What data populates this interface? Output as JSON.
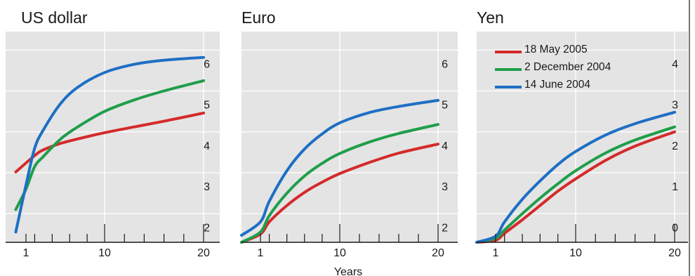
{
  "chart_data": [
    {
      "type": "line",
      "title": "US dollar",
      "xlabel": "",
      "ylabel": "",
      "xlim": [
        0,
        21
      ],
      "ylim": [
        1.8,
        6.95
      ],
      "x_ticks": [
        1,
        10,
        20
      ],
      "y_ticks": [
        2,
        3,
        4,
        5,
        6
      ],
      "series": [
        {
          "name": "18 May 2005",
          "color": "#d42a2a",
          "x": [
            0.5,
            2,
            3,
            5,
            7,
            10,
            13,
            16,
            20
          ],
          "y": [
            3.52,
            3.92,
            4.06,
            4.22,
            4.33,
            4.48,
            4.62,
            4.76,
            4.96
          ]
        },
        {
          "name": "2 December 2004",
          "color": "#1f9e4a",
          "x": [
            0.5,
            1,
            2,
            3,
            5,
            7,
            10,
            13,
            16,
            20
          ],
          "y": [
            2.6,
            3.1,
            3.65,
            3.9,
            4.33,
            4.63,
            5.0,
            5.28,
            5.5,
            5.75
          ]
        },
        {
          "name": "14 June 2004",
          "color": "#1e6fc4",
          "x": [
            0.5,
            1,
            2,
            3,
            5,
            7,
            10,
            13,
            16,
            20
          ],
          "y": [
            2.05,
            3.2,
            4.1,
            4.55,
            5.2,
            5.6,
            5.95,
            6.15,
            6.25,
            6.32
          ]
        }
      ]
    },
    {
      "type": "line",
      "title": "Euro",
      "xlabel": "Years",
      "ylabel": "",
      "xlim": [
        0,
        21
      ],
      "ylim": [
        1.8,
        6.95
      ],
      "x_ticks": [
        1,
        10,
        20
      ],
      "y_ticks": [
        2,
        3,
        4,
        5,
        6
      ],
      "series": [
        {
          "name": "18 May 2005",
          "color": "#d42a2a",
          "x": [
            0,
            1,
            2,
            4,
            6,
            8,
            10,
            13,
            16,
            20
          ],
          "y": [
            1.8,
            2.0,
            2.3,
            2.7,
            3.02,
            3.27,
            3.48,
            3.75,
            3.98,
            4.2
          ]
        },
        {
          "name": "2 December 2004",
          "color": "#1f9e4a",
          "x": [
            0,
            1,
            2,
            4,
            6,
            8,
            10,
            13,
            16,
            20
          ],
          "y": [
            1.8,
            2.05,
            2.45,
            3.0,
            3.42,
            3.73,
            3.97,
            4.25,
            4.46,
            4.68
          ]
        },
        {
          "name": "14 June 2004",
          "color": "#1e6fc4",
          "x": [
            0,
            1,
            2,
            4,
            6,
            8,
            10,
            13,
            16,
            20
          ],
          "y": [
            1.97,
            2.3,
            2.8,
            3.55,
            4.08,
            4.45,
            4.72,
            4.97,
            5.12,
            5.27
          ]
        }
      ]
    },
    {
      "type": "line",
      "title": "Yen",
      "xlabel": "",
      "ylabel": "",
      "xlim": [
        0,
        21
      ],
      "ylim": [
        -0.2,
        4.95
      ],
      "x_ticks": [
        1,
        10,
        20
      ],
      "y_ticks": [
        0,
        1,
        2,
        3,
        4
      ],
      "series": [
        {
          "name": "18 May 2005",
          "color": "#d42a2a",
          "x": [
            0,
            1,
            2,
            4,
            6,
            8,
            10,
            13,
            16,
            20
          ],
          "y": [
            -0.2,
            -0.15,
            0.02,
            0.35,
            0.7,
            1.05,
            1.35,
            1.8,
            2.15,
            2.5
          ]
        },
        {
          "name": "2 December 2004",
          "color": "#1f9e4a",
          "x": [
            0,
            1,
            2,
            4,
            6,
            8,
            10,
            13,
            16,
            20
          ],
          "y": [
            -0.2,
            -0.1,
            0.1,
            0.5,
            0.88,
            1.23,
            1.55,
            1.98,
            2.3,
            2.62
          ]
        },
        {
          "name": "14 June 2004",
          "color": "#1e6fc4",
          "x": [
            0,
            1,
            2,
            4,
            6,
            8,
            10,
            13,
            16,
            20
          ],
          "y": [
            -0.2,
            -0.05,
            0.3,
            0.85,
            1.3,
            1.7,
            2.02,
            2.42,
            2.7,
            2.98
          ]
        }
      ]
    }
  ]
}
